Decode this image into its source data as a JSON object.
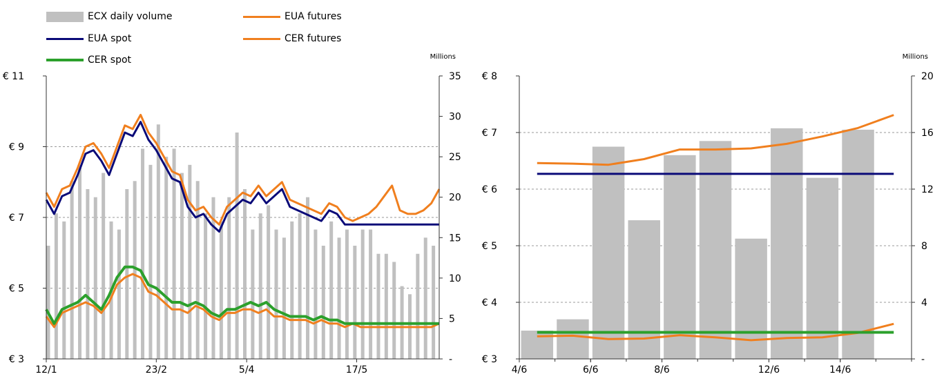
{
  "legend": [
    {
      "label": "ECX daily volume",
      "kind": "bar",
      "color": "#c0c0c0"
    },
    {
      "label": "EUA futures",
      "kind": "line",
      "color": "#f07f1e"
    },
    {
      "label": "EUA spot",
      "kind": "line",
      "color": "#0a0a78"
    },
    {
      "label": "CER futures",
      "kind": "line",
      "color": "#f07f1e"
    },
    {
      "label": "CER spot",
      "kind": "line",
      "color": "#2ca02c"
    }
  ],
  "chart_data": [
    {
      "type": "line",
      "right_axis_unit": "Millions",
      "ylim_left": [
        3,
        11
      ],
      "yticks_left": [
        3,
        5,
        7,
        9,
        11
      ],
      "ytick_labels_left": [
        "€ 3",
        "€ 5",
        "€ 7",
        "€ 9",
        "€ 11"
      ],
      "ylim_right": [
        0,
        35
      ],
      "yticks_right": [
        0,
        5,
        10,
        15,
        20,
        25,
        30,
        35
      ],
      "ytick_labels_right": [
        "-",
        "5",
        "10",
        "15",
        "20",
        "25",
        "30",
        "35"
      ],
      "xlim": [
        0,
        100
      ],
      "xticks": [
        0,
        28,
        51,
        79
      ],
      "xtick_labels": [
        "12/1",
        "23/2",
        "5/4",
        "17/5"
      ],
      "grid": "horizontal dashed",
      "series": [
        {
          "name": "ECX daily volume",
          "kind": "bar",
          "axis": "right",
          "color": "#c0c0c0",
          "x": [
            0,
            2,
            4,
            6,
            8,
            10,
            12,
            14,
            16,
            18,
            20,
            22,
            24,
            26,
            28,
            30,
            32,
            34,
            36,
            38,
            40,
            42,
            44,
            46,
            48,
            50,
            52,
            54,
            56,
            58,
            60,
            62,
            64,
            66,
            68,
            70,
            72,
            74,
            76,
            78,
            80,
            82,
            84,
            86,
            88,
            90,
            92,
            94,
            96,
            98
          ],
          "values": [
            14,
            18,
            17,
            22,
            24,
            21,
            20,
            23,
            17,
            16,
            21,
            22,
            26,
            24,
            29,
            25,
            26,
            23,
            24,
            22,
            18,
            20,
            17,
            20,
            28,
            21,
            16,
            18,
            19,
            16,
            15,
            17,
            18,
            20,
            16,
            14,
            17,
            15,
            16,
            14,
            16,
            16,
            13,
            13,
            12,
            9,
            8,
            13,
            15,
            14
          ]
        },
        {
          "name": "EUA futures",
          "kind": "line",
          "axis": "left",
          "color": "#f07f1e",
          "width": 3,
          "x": [
            0,
            2,
            4,
            6,
            8,
            10,
            12,
            14,
            16,
            18,
            20,
            22,
            24,
            26,
            28,
            30,
            32,
            34,
            36,
            38,
            40,
            42,
            44,
            46,
            48,
            50,
            52,
            54,
            56,
            58,
            60,
            62,
            64,
            66,
            68,
            70,
            72,
            74,
            76,
            78,
            80,
            82,
            84,
            86,
            88,
            90,
            92,
            94,
            96,
            98,
            100
          ],
          "values": [
            7.7,
            7.3,
            7.8,
            7.9,
            8.4,
            9.0,
            9.1,
            8.8,
            8.4,
            9.0,
            9.6,
            9.5,
            9.9,
            9.4,
            9.1,
            8.7,
            8.3,
            8.2,
            7.5,
            7.2,
            7.3,
            7.0,
            6.8,
            7.3,
            7.5,
            7.7,
            7.6,
            7.9,
            7.6,
            7.8,
            8.0,
            7.5,
            7.4,
            7.3,
            7.2,
            7.1,
            7.4,
            7.3,
            7.0,
            6.9,
            7.0,
            7.1,
            7.3,
            7.6,
            7.9,
            7.2,
            7.1,
            7.1,
            7.2,
            7.4,
            7.8
          ]
        },
        {
          "name": "EUA spot",
          "kind": "line",
          "axis": "left",
          "color": "#0a0a78",
          "width": 3,
          "x": [
            0,
            2,
            4,
            6,
            8,
            10,
            12,
            14,
            16,
            18,
            20,
            22,
            24,
            26,
            28,
            30,
            32,
            34,
            36,
            38,
            40,
            42,
            44,
            46,
            48,
            50,
            52,
            54,
            56,
            58,
            60,
            62,
            64,
            66,
            68,
            70,
            72,
            74,
            76,
            78,
            80,
            82,
            84,
            86,
            88,
            90,
            92,
            94,
            96,
            98,
            100
          ],
          "values": [
            7.5,
            7.1,
            7.6,
            7.7,
            8.2,
            8.8,
            8.9,
            8.6,
            8.2,
            8.8,
            9.4,
            9.3,
            9.7,
            9.2,
            8.9,
            8.5,
            8.1,
            8.0,
            7.3,
            7.0,
            7.1,
            6.8,
            6.6,
            7.1,
            7.3,
            7.5,
            7.4,
            7.7,
            7.4,
            7.6,
            7.8,
            7.3,
            7.2,
            7.1,
            7.0,
            6.9,
            7.2,
            7.1,
            6.8,
            6.8,
            6.8,
            6.8,
            6.8,
            6.8,
            6.8,
            6.8,
            6.8,
            6.8,
            6.8,
            6.8,
            6.8
          ]
        },
        {
          "name": "CER futures",
          "kind": "line",
          "axis": "left",
          "color": "#f07f1e",
          "width": 3,
          "x": [
            0,
            2,
            4,
            6,
            8,
            10,
            12,
            14,
            16,
            18,
            20,
            22,
            24,
            26,
            28,
            30,
            32,
            34,
            36,
            38,
            40,
            42,
            44,
            46,
            48,
            50,
            52,
            54,
            56,
            58,
            60,
            62,
            64,
            66,
            68,
            70,
            72,
            74,
            76,
            78,
            80,
            82,
            84,
            86,
            88,
            90,
            92,
            94,
            96,
            98,
            100
          ],
          "values": [
            4.2,
            3.9,
            4.3,
            4.4,
            4.5,
            4.6,
            4.5,
            4.3,
            4.6,
            5.1,
            5.3,
            5.4,
            5.3,
            4.9,
            4.8,
            4.6,
            4.4,
            4.4,
            4.3,
            4.5,
            4.4,
            4.2,
            4.1,
            4.3,
            4.3,
            4.4,
            4.4,
            4.3,
            4.4,
            4.2,
            4.2,
            4.1,
            4.1,
            4.1,
            4.0,
            4.1,
            4.0,
            4.0,
            3.9,
            4.0,
            3.9,
            3.9,
            3.9,
            3.9,
            3.9,
            3.9,
            3.9,
            3.9,
            3.9,
            3.9,
            4.0
          ]
        },
        {
          "name": "CER spot",
          "kind": "line",
          "axis": "left",
          "color": "#2ca02c",
          "width": 4,
          "x": [
            0,
            2,
            4,
            6,
            8,
            10,
            12,
            14,
            16,
            18,
            20,
            22,
            24,
            26,
            28,
            30,
            32,
            34,
            36,
            38,
            40,
            42,
            44,
            46,
            48,
            50,
            52,
            54,
            56,
            58,
            60,
            62,
            64,
            66,
            68,
            70,
            72,
            74,
            76,
            78,
            80,
            82,
            84,
            86,
            88,
            90,
            92,
            94,
            96,
            98,
            100
          ],
          "values": [
            4.4,
            4.0,
            4.4,
            4.5,
            4.6,
            4.8,
            4.6,
            4.4,
            4.8,
            5.3,
            5.6,
            5.6,
            5.5,
            5.1,
            5.0,
            4.8,
            4.6,
            4.6,
            4.5,
            4.6,
            4.5,
            4.3,
            4.2,
            4.4,
            4.4,
            4.5,
            4.6,
            4.5,
            4.6,
            4.4,
            4.3,
            4.2,
            4.2,
            4.2,
            4.1,
            4.2,
            4.1,
            4.1,
            4.0,
            4.0,
            4.0,
            4.0,
            4.0,
            4.0,
            4.0,
            4.0,
            4.0,
            4.0,
            4.0,
            4.0,
            4.0
          ]
        }
      ]
    },
    {
      "type": "bar",
      "right_axis_unit": "Millions",
      "ylim_left": [
        3,
        8
      ],
      "yticks_left": [
        3,
        4,
        5,
        6,
        7,
        8
      ],
      "ytick_labels_left": [
        "€ 3",
        "€ 4",
        "€ 5",
        "€ 6",
        "€ 7",
        "€ 8"
      ],
      "ylim_right": [
        0,
        20
      ],
      "yticks_right": [
        0,
        4,
        8,
        12,
        16,
        20
      ],
      "ytick_labels_right": [
        "-",
        "4",
        "8",
        "12",
        "16",
        "20"
      ],
      "categories": [
        "4/6",
        "",
        "6/6",
        "",
        "8/6",
        "",
        "",
        "12/6",
        "",
        "14/6",
        ""
      ],
      "xtick_labels": [
        "4/6",
        "6/6",
        "8/6",
        "12/6",
        "14/6"
      ],
      "xtick_index": [
        0,
        2,
        4,
        7,
        9
      ],
      "grid": "horizontal dashed",
      "series": [
        {
          "name": "ECX daily volume",
          "kind": "bar",
          "axis": "right",
          "color": "#c0c0c0",
          "values": [
            2.0,
            2.8,
            15.0,
            9.8,
            14.4,
            15.4,
            8.5,
            16.3,
            12.8,
            16.2,
            0
          ]
        },
        {
          "name": "EUA futures",
          "kind": "line",
          "axis": "left",
          "color": "#f07f1e",
          "width": 3,
          "values": [
            6.46,
            6.45,
            6.43,
            6.53,
            6.7,
            6.7,
            6.72,
            6.8,
            6.93,
            7.08,
            7.31
          ]
        },
        {
          "name": "EUA spot",
          "kind": "line",
          "axis": "left",
          "color": "#0a0a78",
          "width": 3,
          "values": [
            6.27,
            6.27,
            6.27,
            6.27,
            6.27,
            6.27,
            6.27,
            6.27,
            6.27,
            6.27,
            6.27
          ]
        },
        {
          "name": "CER futures",
          "kind": "line",
          "axis": "left",
          "color": "#f07f1e",
          "width": 3,
          "values": [
            3.4,
            3.41,
            3.35,
            3.36,
            3.42,
            3.38,
            3.33,
            3.37,
            3.38,
            3.46,
            3.62
          ]
        },
        {
          "name": "CER spot",
          "kind": "line",
          "axis": "left",
          "color": "#2ca02c",
          "width": 4,
          "values": [
            3.47,
            3.47,
            3.47,
            3.47,
            3.47,
            3.47,
            3.47,
            3.47,
            3.47,
            3.47,
            3.47
          ]
        }
      ]
    }
  ]
}
